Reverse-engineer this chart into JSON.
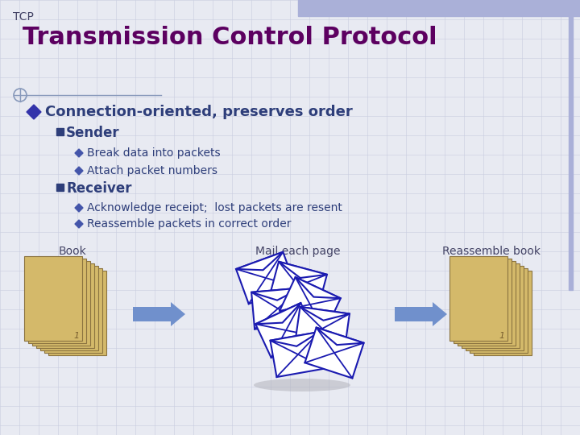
{
  "bg_color": "#e8eaf2",
  "grid_color": "#c8cce0",
  "title_text": "Transmission Control Protocol",
  "title_color": "#5c0060",
  "tcp_label": "TCP",
  "tcp_color": "#444466",
  "bullet1_text": "Connection-oriented, preserves order",
  "bullet1_color": "#2e3e7a",
  "sub1_text": "Sender",
  "sub1_color": "#2e3e7a",
  "sub2_text": "Receiver",
  "sub2_color": "#2e3e7a",
  "item1a": "Break data into packets",
  "item1b": "Attach packet numbers",
  "item2a": "Acknowledge receipt;  lost packets are resent",
  "item2b": "Reassemble packets in correct order",
  "items_color": "#2e3e7a",
  "label_book": "Book",
  "label_mail": "Mail each page",
  "label_reassemble": "Reassemble book",
  "labels_color": "#444466",
  "book_color": "#d4b96a",
  "book_edge_color": "#8b7340",
  "arrow_color": "#7090cc",
  "envelope_bg": "#ffffff",
  "envelope_edge": "#1a1ab0",
  "top_bar_color": "#aab0d8",
  "right_bar_color": "#aab0d8",
  "circ_color": "#8899bb",
  "line_color": "#8899bb"
}
